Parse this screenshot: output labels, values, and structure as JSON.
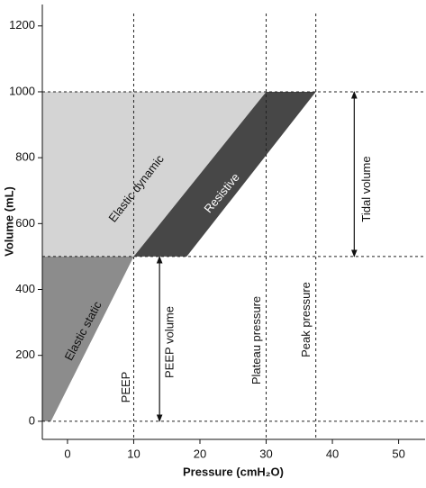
{
  "chart_data": {
    "type": "pressure-volume",
    "xlabel": "Pressure (cmH₂O)",
    "ylabel": "Volume (mL)",
    "xlim": [
      -3.8,
      54
    ],
    "ylim": [
      -55,
      1265
    ],
    "xticks": [
      0,
      10,
      20,
      30,
      40,
      50
    ],
    "yticks": [
      0,
      200,
      400,
      600,
      800,
      1000,
      1200
    ],
    "regions": [
      {
        "name": "Elastic static",
        "color": "#8c8c8c",
        "x": [
          -2.5,
          10,
          -3.8,
          -3.8
        ],
        "y": [
          0,
          500,
          500,
          0
        ]
      },
      {
        "name": "Elastic dynamic",
        "color": "#d4d4d4",
        "x": [
          -3.8,
          10,
          30,
          -3.8
        ],
        "y": [
          500,
          500,
          1000,
          1000
        ]
      },
      {
        "name": "Resistive",
        "color": "#474747",
        "x": [
          10,
          18,
          37.5,
          30
        ],
        "y": [
          500,
          500,
          1000,
          1000
        ]
      }
    ],
    "hlines": [
      0,
      500,
      1000
    ],
    "vlines": [
      {
        "value": 10,
        "label": "PEEP"
      },
      {
        "value": 30,
        "label": "Plateau pressure"
      },
      {
        "value": 37.5,
        "label": "Peak pressure"
      }
    ],
    "arrows": [
      {
        "label": "Tidal volume",
        "x": 43.3,
        "y": [
          500,
          1000
        ]
      },
      {
        "label": "PEEP volume",
        "x": 13.9,
        "y": [
          0,
          500
        ]
      }
    ]
  }
}
